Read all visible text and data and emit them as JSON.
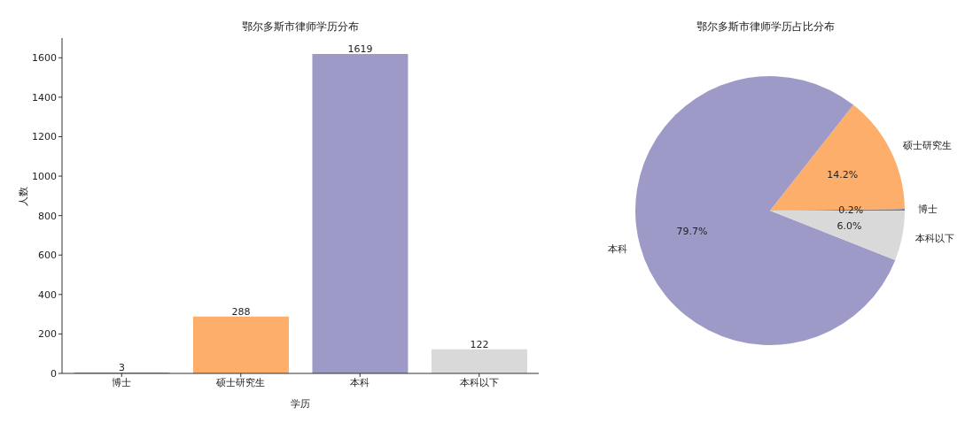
{
  "chart_data": [
    {
      "type": "bar",
      "title": "鄂尔多斯市律师学历分布",
      "xlabel": "学历",
      "ylabel": "人数",
      "categories": [
        "博士",
        "硕士研究生",
        "本科",
        "本科以下"
      ],
      "values": [
        3,
        288,
        1619,
        122
      ],
      "colors": [
        "#5b7fa6",
        "#fdae6b",
        "#9e9ac8",
        "#d9d9d9"
      ],
      "ylim": [
        0,
        1700
      ],
      "yticks": [
        0,
        200,
        400,
        600,
        800,
        1000,
        1200,
        1400,
        1600
      ],
      "data_labels": true,
      "grid": false
    },
    {
      "type": "pie",
      "title": "鄂尔多斯市律师学历占比分布",
      "categories": [
        "博士",
        "硕士研究生",
        "本科",
        "本科以下"
      ],
      "values": [
        0.2,
        14.2,
        79.7,
        6.0
      ],
      "colors": [
        "#5b7fa6",
        "#fdae6b",
        "#9e9ac8",
        "#d9d9d9"
      ],
      "value_labels": [
        "0.2%",
        "14.2%",
        "79.7%",
        "6.0%"
      ]
    }
  ]
}
